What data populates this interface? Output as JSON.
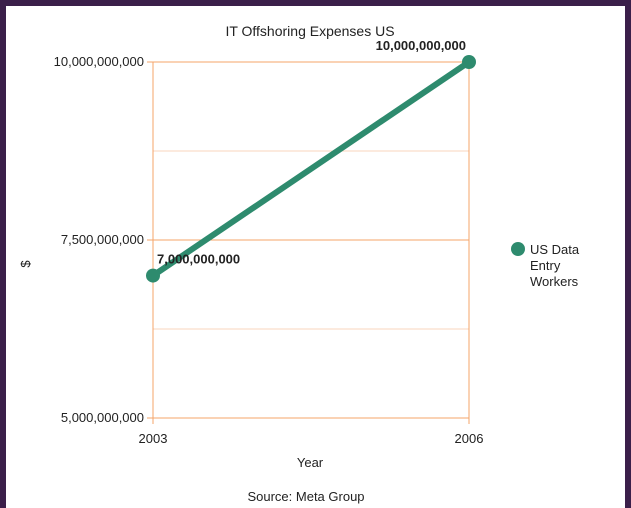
{
  "chart_data": {
    "type": "line",
    "title": "IT Offshoring Expenses US",
    "xlabel": "Year",
    "ylabel": "$",
    "x": [
      "2003",
      "2006"
    ],
    "series": [
      {
        "name": "US Data Entry Workers",
        "values": [
          7000000000,
          10000000000
        ],
        "data_labels": [
          "7,000,000,000",
          "10,000,000,000"
        ]
      }
    ],
    "ylim": [
      5000000000,
      10000000000
    ],
    "y_ticks": [
      5000000000,
      7500000000,
      10000000000
    ],
    "y_tick_labels": [
      "5,000,000,000",
      "7,500,000,000",
      "10,000,000,000"
    ],
    "y_minor_gridlines": [
      6250000000,
      8750000000
    ],
    "grid": true,
    "legend_position": "right",
    "source": "Source: Meta Group",
    "colors": {
      "series": "#2e8b6e",
      "grid_major": "#f4a46a",
      "grid_minor": "#f9d5bd",
      "frame": "#3b1f4a"
    }
  }
}
